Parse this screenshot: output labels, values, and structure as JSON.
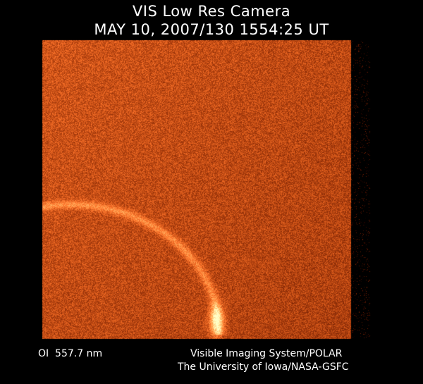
{
  "header": {
    "title": "VIS Low Res Camera",
    "timestamp": "MAY 10, 2007/130 1554:25 UT"
  },
  "footer": {
    "wavelength": "OI  557.7 nm",
    "credit_line1": "Visible Imaging System/POLAR",
    "credit_line2": "The University of Iowa/NASA-GSFC"
  },
  "image": {
    "subject": "auroral oval emission",
    "colormap": [
      "#000000",
      "#7a2a05",
      "#b24a10",
      "#e88a2a",
      "#ffd070"
    ]
  }
}
